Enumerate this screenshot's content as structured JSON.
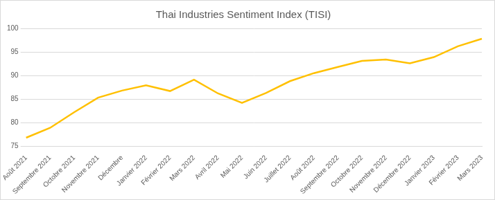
{
  "chart_data": {
    "type": "line",
    "title": "Thai Industries Sentiment Index (TISI)",
    "categories": [
      "Août 2021",
      "Septembre 2021",
      "Octobre 2021",
      "Novembre 2021",
      "Décembre",
      "Janvier 2022",
      "Février 2022",
      "Mars 2022",
      "Avril 2022",
      "Mai 2022",
      "Juin 2022",
      "Juillet 2022",
      "Août 2022",
      "Septembre 2022",
      "Octobre 2022",
      "Novembre 2022",
      "Décembre 2022",
      "Janvier 2023",
      "Février 2023",
      "Mars 2023"
    ],
    "values": [
      76.8,
      78.9,
      82.2,
      85.3,
      86.8,
      87.9,
      86.7,
      89.1,
      86.2,
      84.2,
      86.3,
      88.8,
      90.5,
      91.8,
      93.1,
      93.4,
      92.6,
      93.9,
      96.2,
      97.8
    ],
    "color": "#ffc000",
    "ylim": [
      75,
      100
    ],
    "yticks": [
      75,
      80,
      85,
      90,
      95,
      100
    ],
    "grid": true
  }
}
